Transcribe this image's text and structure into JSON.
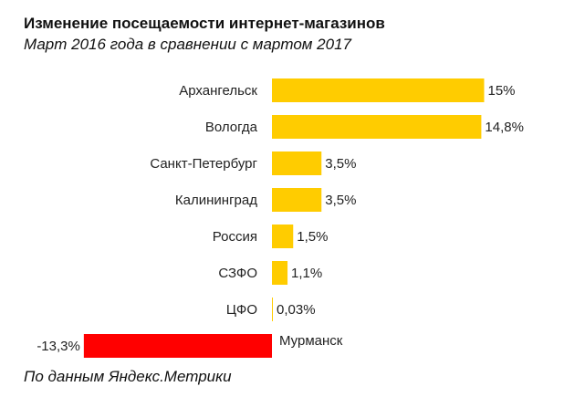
{
  "header": {
    "title": "Изменение посещаемости интернет-магазинов",
    "subtitle": "Март 2016 года в сравнении с мартом 2017"
  },
  "footer": {
    "source": "По данным Яндекс.Метрики"
  },
  "colors": {
    "positive": "#FFCC00",
    "negative": "#FF0000"
  },
  "chart_data": {
    "type": "bar",
    "orientation": "horizontal",
    "title": "Изменение посещаемости интернет-магазинов",
    "subtitle": "Март 2016 года в сравнении с мартом 2017",
    "categories": [
      "Архангельск",
      "Вологда",
      "Санкт-Петербург",
      "Калининград",
      "Россия",
      "СЗФО",
      "ЦФО",
      "Мурманск"
    ],
    "values": [
      15,
      14.8,
      3.5,
      3.5,
      1.5,
      1.1,
      0.03,
      -13.3
    ],
    "data_labels": [
      "15%",
      "14,8%",
      "3,5%",
      "3,5%",
      "1,5%",
      "1,1%",
      "0,03%",
      "-13,3%"
    ],
    "unit": "%",
    "grid": false,
    "legend": "none"
  }
}
